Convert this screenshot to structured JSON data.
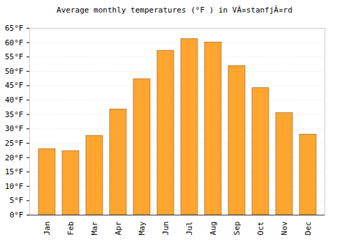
{
  "chart_data": {
    "type": "bar",
    "title": "Average monthly temperatures (°F ) in VÃ¤stanfjÃ¤rd",
    "categories": [
      "Jan",
      "Feb",
      "Mar",
      "Apr",
      "May",
      "Jun",
      "Jul",
      "Aug",
      "Sep",
      "Oct",
      "Nov",
      "Dec"
    ],
    "values": [
      23,
      22.3,
      27.6,
      36.8,
      47.3,
      57.2,
      61.3,
      60.1,
      51.9,
      44.2,
      35.5,
      28
    ],
    "color": "#ffa530",
    "ylim": [
      0,
      65
    ],
    "yticks": [
      {
        "value": 0,
        "label": "0°F"
      },
      {
        "value": 5,
        "label": "5°F"
      },
      {
        "value": 10,
        "label": "10°F"
      },
      {
        "value": 15,
        "label": "15°F"
      },
      {
        "value": 20,
        "label": "20°F"
      },
      {
        "value": 25,
        "label": "25°F"
      },
      {
        "value": 30,
        "label": "30°F"
      },
      {
        "value": 35,
        "label": "35°F"
      },
      {
        "value": 40,
        "label": "40°F"
      },
      {
        "value": 45,
        "label": "45°F"
      },
      {
        "value": 50,
        "label": "50°F"
      },
      {
        "value": 55,
        "label": "55°F"
      },
      {
        "value": 60,
        "label": "60°F"
      },
      {
        "value": 65,
        "label": "65°F"
      }
    ],
    "grid": true
  }
}
